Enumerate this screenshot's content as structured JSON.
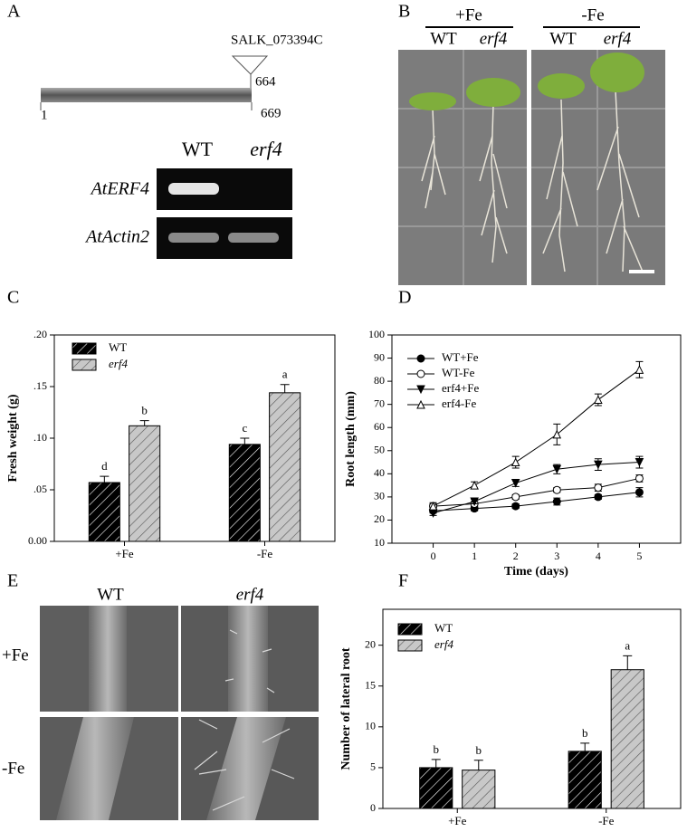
{
  "panel_a": {
    "label": "A",
    "insertion": "SALK_073394C",
    "start": 1,
    "insert_position": 664,
    "end": 669,
    "gel_columns": [
      "WT",
      "erf4"
    ],
    "gel_rows": [
      "AtERF4",
      "AtActin2"
    ]
  },
  "panel_b": {
    "label": "B",
    "groups": [
      {
        "name": "+Fe",
        "lanes": [
          "WT",
          "erf4"
        ]
      },
      {
        "name": "-Fe",
        "lanes": [
          "WT",
          "erf4"
        ]
      }
    ]
  },
  "panel_e": {
    "label": "E",
    "columns": [
      "WT",
      "erf4"
    ],
    "rows": [
      "+Fe",
      "-Fe"
    ]
  },
  "chart_data": [
    {
      "type": "bar",
      "label": "C",
      "y_label": "Fresh weight (g)",
      "categories": [
        "+Fe",
        "-Fe"
      ],
      "series": [
        {
          "name": "WT",
          "color": "#000000",
          "values": [
            0.057,
            0.094
          ],
          "errors": [
            0.006,
            0.006
          ],
          "letters": [
            "d",
            "c"
          ]
        },
        {
          "name": "erf4",
          "color": "#c8c8c8",
          "values": [
            0.112,
            0.144
          ],
          "errors": [
            0.005,
            0.008
          ],
          "letters": [
            "b",
            "a"
          ]
        }
      ],
      "ylim": [
        0,
        0.2
      ],
      "yticks": [
        {
          "value": 0,
          "label": "0.00"
        },
        {
          "value": 0.05,
          "label": ".05"
        },
        {
          "value": 0.1,
          "label": ".10"
        },
        {
          "value": 0.15,
          "label": ".15"
        },
        {
          "value": 0.2,
          "label": ".20"
        }
      ]
    },
    {
      "type": "line",
      "label": "D",
      "x_label": "Time (days)",
      "y_label": "Root length (mm)",
      "x": [
        0,
        1,
        2,
        3,
        4,
        5
      ],
      "xlim": [
        -1,
        6
      ],
      "xticks": [
        0,
        1,
        2,
        3,
        4,
        5
      ],
      "ylim": [
        10,
        100
      ],
      "yticks": [
        10,
        20,
        30,
        40,
        50,
        60,
        70,
        80,
        90,
        100
      ],
      "series": [
        {
          "name": "WT+Fe",
          "color": "#000000",
          "marker": "o",
          "filled": true,
          "values": [
            24,
            25,
            26,
            28,
            30,
            32
          ],
          "errors": [
            1,
            1,
            1,
            1.5,
            1,
            2
          ]
        },
        {
          "name": "WT-Fe",
          "color": "#000000",
          "marker": "o",
          "filled": false,
          "values": [
            26,
            27,
            30,
            33,
            34,
            38
          ],
          "errors": [
            1,
            1,
            1,
            1,
            1.5,
            1.5
          ]
        },
        {
          "name": "erf4+Fe",
          "color": "#000000",
          "marker": "v",
          "filled": true,
          "values": [
            23,
            28,
            36,
            42,
            44,
            45
          ],
          "errors": [
            1,
            1,
            1.5,
            2,
            2.5,
            2.5
          ]
        },
        {
          "name": "erf4-Fe",
          "color": "#000000",
          "marker": "^",
          "filled": false,
          "values": [
            26,
            35,
            45,
            57,
            72,
            85
          ],
          "errors": [
            1.5,
            1.5,
            2.5,
            4.5,
            2.5,
            3.5
          ]
        }
      ]
    },
    {
      "type": "bar",
      "label": "F",
      "y_label": "Number of lateral root",
      "categories": [
        "+Fe",
        "-Fe"
      ],
      "series": [
        {
          "name": "WT",
          "color": "#000000",
          "values": [
            5,
            7
          ],
          "errors": [
            1,
            1
          ],
          "letters": [
            "b",
            "b"
          ]
        },
        {
          "name": "erf4",
          "color": "#c8c8c8",
          "values": [
            4.7,
            17
          ],
          "errors": [
            1.2,
            1.7
          ],
          "letters": [
            "b",
            "a"
          ]
        }
      ],
      "ylim": [
        0,
        24.4
      ],
      "yticks": [
        0,
        5,
        10,
        15,
        20
      ]
    }
  ]
}
